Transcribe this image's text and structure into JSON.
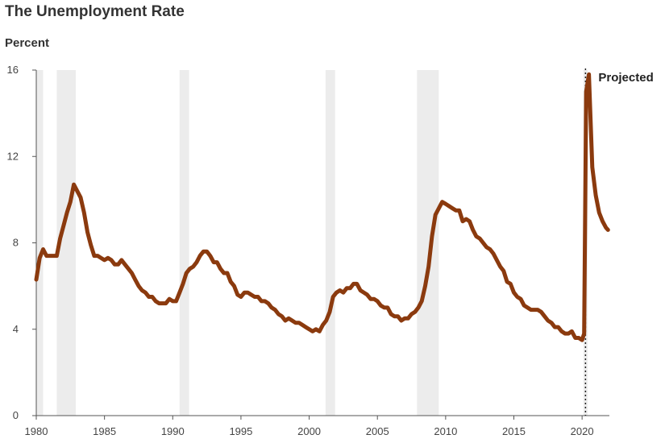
{
  "chart_data": {
    "type": "line",
    "title": "The Unemployment Rate",
    "ylabel": "Percent",
    "xlabel": "",
    "xlim": [
      1980,
      2022
    ],
    "ylim": [
      0,
      16
    ],
    "x_ticks": [
      1980,
      1985,
      1990,
      1995,
      2000,
      2005,
      2010,
      2015,
      2020
    ],
    "y_ticks": [
      0,
      4,
      8,
      12,
      16
    ],
    "projection_start": 2020.25,
    "projection_label": "Projected",
    "line_color": "#8B3A0E",
    "recession_color": "#ececec",
    "recessions": [
      [
        1980.0,
        1980.5
      ],
      [
        1981.5,
        1982.9
      ],
      [
        1990.5,
        1991.2
      ],
      [
        2001.2,
        2001.9
      ],
      [
        2007.9,
        2009.5
      ],
      [
        2020.1,
        2020.4
      ]
    ],
    "series": [
      {
        "values": [
          [
            1980.0,
            6.3
          ],
          [
            1980.25,
            7.3
          ],
          [
            1980.5,
            7.7
          ],
          [
            1980.75,
            7.4
          ],
          [
            1981.0,
            7.4
          ],
          [
            1981.25,
            7.4
          ],
          [
            1981.5,
            7.4
          ],
          [
            1981.75,
            8.2
          ],
          [
            1982.0,
            8.8
          ],
          [
            1982.25,
            9.4
          ],
          [
            1982.5,
            9.9
          ],
          [
            1982.75,
            10.7
          ],
          [
            1983.0,
            10.4
          ],
          [
            1983.25,
            10.1
          ],
          [
            1983.5,
            9.4
          ],
          [
            1983.75,
            8.5
          ],
          [
            1984.0,
            7.9
          ],
          [
            1984.25,
            7.4
          ],
          [
            1984.5,
            7.4
          ],
          [
            1984.75,
            7.3
          ],
          [
            1985.0,
            7.2
          ],
          [
            1985.25,
            7.3
          ],
          [
            1985.5,
            7.2
          ],
          [
            1985.75,
            7.0
          ],
          [
            1986.0,
            7.0
          ],
          [
            1986.25,
            7.2
          ],
          [
            1986.5,
            7.0
          ],
          [
            1986.75,
            6.8
          ],
          [
            1987.0,
            6.6
          ],
          [
            1987.25,
            6.3
          ],
          [
            1987.5,
            6.0
          ],
          [
            1987.75,
            5.8
          ],
          [
            1988.0,
            5.7
          ],
          [
            1988.25,
            5.5
          ],
          [
            1988.5,
            5.5
          ],
          [
            1988.75,
            5.3
          ],
          [
            1989.0,
            5.2
          ],
          [
            1989.25,
            5.2
          ],
          [
            1989.5,
            5.2
          ],
          [
            1989.75,
            5.4
          ],
          [
            1990.0,
            5.3
          ],
          [
            1990.25,
            5.3
          ],
          [
            1990.5,
            5.7
          ],
          [
            1990.75,
            6.1
          ],
          [
            1991.0,
            6.6
          ],
          [
            1991.25,
            6.8
          ],
          [
            1991.5,
            6.9
          ],
          [
            1991.75,
            7.1
          ],
          [
            1992.0,
            7.4
          ],
          [
            1992.25,
            7.6
          ],
          [
            1992.5,
            7.6
          ],
          [
            1992.75,
            7.4
          ],
          [
            1993.0,
            7.1
          ],
          [
            1993.25,
            7.1
          ],
          [
            1993.5,
            6.8
          ],
          [
            1993.75,
            6.6
          ],
          [
            1994.0,
            6.6
          ],
          [
            1994.25,
            6.2
          ],
          [
            1994.5,
            6.0
          ],
          [
            1994.75,
            5.6
          ],
          [
            1995.0,
            5.5
          ],
          [
            1995.25,
            5.7
          ],
          [
            1995.5,
            5.7
          ],
          [
            1995.75,
            5.6
          ],
          [
            1996.0,
            5.5
          ],
          [
            1996.25,
            5.5
          ],
          [
            1996.5,
            5.3
          ],
          [
            1996.75,
            5.3
          ],
          [
            1997.0,
            5.2
          ],
          [
            1997.25,
            5.0
          ],
          [
            1997.5,
            4.9
          ],
          [
            1997.75,
            4.7
          ],
          [
            1998.0,
            4.6
          ],
          [
            1998.25,
            4.4
          ],
          [
            1998.5,
            4.5
          ],
          [
            1998.75,
            4.4
          ],
          [
            1999.0,
            4.3
          ],
          [
            1999.25,
            4.3
          ],
          [
            1999.5,
            4.2
          ],
          [
            1999.75,
            4.1
          ],
          [
            2000.0,
            4.0
          ],
          [
            2000.25,
            3.9
          ],
          [
            2000.5,
            4.0
          ],
          [
            2000.75,
            3.9
          ],
          [
            2001.0,
            4.2
          ],
          [
            2001.25,
            4.4
          ],
          [
            2001.5,
            4.8
          ],
          [
            2001.75,
            5.5
          ],
          [
            2002.0,
            5.7
          ],
          [
            2002.25,
            5.8
          ],
          [
            2002.5,
            5.7
          ],
          [
            2002.75,
            5.9
          ],
          [
            2003.0,
            5.9
          ],
          [
            2003.25,
            6.1
          ],
          [
            2003.5,
            6.1
          ],
          [
            2003.75,
            5.8
          ],
          [
            2004.0,
            5.7
          ],
          [
            2004.25,
            5.6
          ],
          [
            2004.5,
            5.4
          ],
          [
            2004.75,
            5.4
          ],
          [
            2005.0,
            5.3
          ],
          [
            2005.25,
            5.1
          ],
          [
            2005.5,
            5.0
          ],
          [
            2005.75,
            5.0
          ],
          [
            2006.0,
            4.7
          ],
          [
            2006.25,
            4.6
          ],
          [
            2006.5,
            4.6
          ],
          [
            2006.75,
            4.4
          ],
          [
            2007.0,
            4.5
          ],
          [
            2007.25,
            4.5
          ],
          [
            2007.5,
            4.7
          ],
          [
            2007.75,
            4.8
          ],
          [
            2008.0,
            5.0
          ],
          [
            2008.25,
            5.3
          ],
          [
            2008.5,
            6.0
          ],
          [
            2008.75,
            6.9
          ],
          [
            2009.0,
            8.3
          ],
          [
            2009.25,
            9.3
          ],
          [
            2009.5,
            9.6
          ],
          [
            2009.75,
            9.9
          ],
          [
            2010.0,
            9.8
          ],
          [
            2010.25,
            9.7
          ],
          [
            2010.5,
            9.6
          ],
          [
            2010.75,
            9.5
          ],
          [
            2011.0,
            9.5
          ],
          [
            2011.25,
            9.0
          ],
          [
            2011.5,
            9.1
          ],
          [
            2011.75,
            9.0
          ],
          [
            2012.0,
            8.6
          ],
          [
            2012.25,
            8.3
          ],
          [
            2012.5,
            8.2
          ],
          [
            2012.75,
            8.0
          ],
          [
            2013.0,
            7.8
          ],
          [
            2013.25,
            7.7
          ],
          [
            2013.5,
            7.5
          ],
          [
            2013.75,
            7.2
          ],
          [
            2014.0,
            6.9
          ],
          [
            2014.25,
            6.7
          ],
          [
            2014.5,
            6.2
          ],
          [
            2014.75,
            6.1
          ],
          [
            2015.0,
            5.7
          ],
          [
            2015.25,
            5.5
          ],
          [
            2015.5,
            5.4
          ],
          [
            2015.75,
            5.1
          ],
          [
            2016.0,
            5.0
          ],
          [
            2016.25,
            4.9
          ],
          [
            2016.5,
            4.9
          ],
          [
            2016.75,
            4.9
          ],
          [
            2017.0,
            4.8
          ],
          [
            2017.25,
            4.6
          ],
          [
            2017.5,
            4.4
          ],
          [
            2017.75,
            4.3
          ],
          [
            2018.0,
            4.1
          ],
          [
            2018.25,
            4.1
          ],
          [
            2018.5,
            3.9
          ],
          [
            2018.75,
            3.8
          ],
          [
            2019.0,
            3.8
          ],
          [
            2019.25,
            3.9
          ],
          [
            2019.5,
            3.6
          ],
          [
            2019.75,
            3.6
          ],
          [
            2020.0,
            3.5
          ],
          [
            2020.15,
            3.8
          ],
          [
            2020.3,
            15.0
          ],
          [
            2020.5,
            15.8
          ],
          [
            2020.75,
            11.5
          ],
          [
            2021.0,
            10.2
          ],
          [
            2021.25,
            9.4
          ],
          [
            2021.5,
            9.0
          ],
          [
            2021.75,
            8.7
          ],
          [
            2021.9,
            8.6
          ]
        ]
      }
    ]
  }
}
